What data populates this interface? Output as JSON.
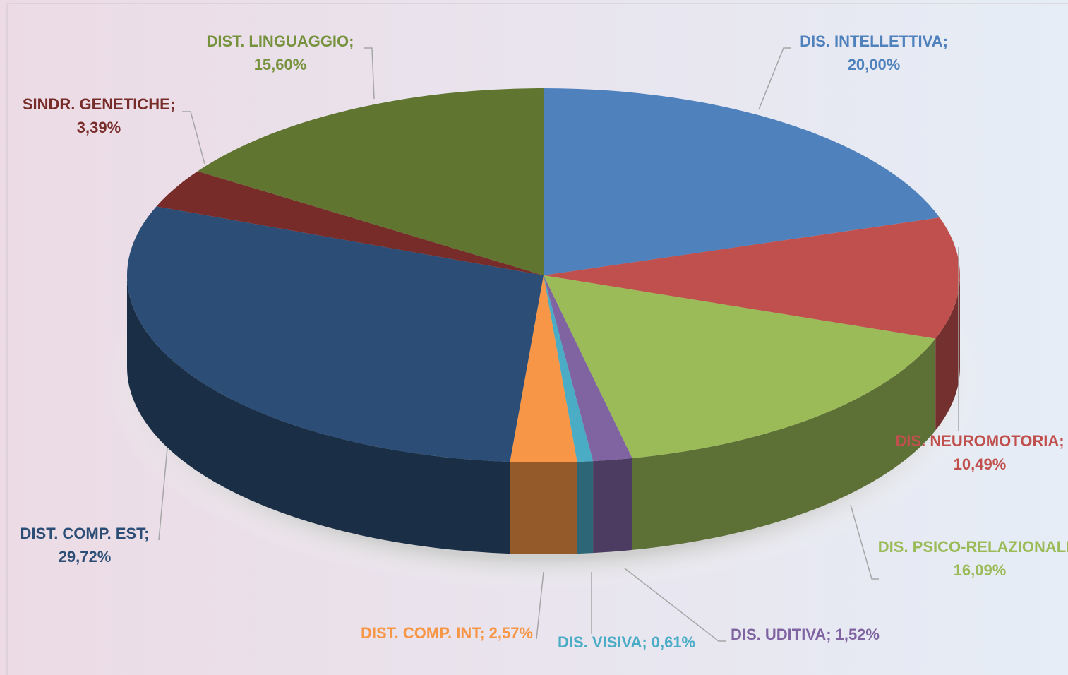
{
  "chart_data": {
    "type": "pie3d",
    "categories": [
      "DIS. INTELLETTIVA",
      "DIS. NEUROMOTORIA",
      "DIS. PSICO-RELAZIONALE",
      "DIS. UDITIVA",
      "DIS. VISIVA",
      "DIST. COMP. INT",
      "DIST. COMP. EST",
      "SINDR. GENETICHE",
      "DIST. LINGUAGGIO"
    ],
    "values": [
      20.0,
      10.49,
      16.09,
      1.52,
      0.61,
      2.57,
      29.72,
      3.39,
      15.6
    ],
    "value_labels": [
      "20,00%",
      "10,49%",
      "16,09%",
      "1,52%",
      "0,61%",
      "2,57%",
      "29,72%",
      "3,39%",
      "15,60%"
    ],
    "label_separator": ";",
    "colors": [
      "#4f81bd",
      "#c0504d",
      "#9bbb59",
      "#8064a2",
      "#4bacc6",
      "#f79646",
      "#2c4d75",
      "#772c2a",
      "#5f7530"
    ],
    "label_colors": [
      "#4f81bd",
      "#c0504d",
      "#9bbb59",
      "#8064a2",
      "#4bacc6",
      "#f79646",
      "#2c4d75",
      "#772c2a",
      "#76923c"
    ]
  }
}
